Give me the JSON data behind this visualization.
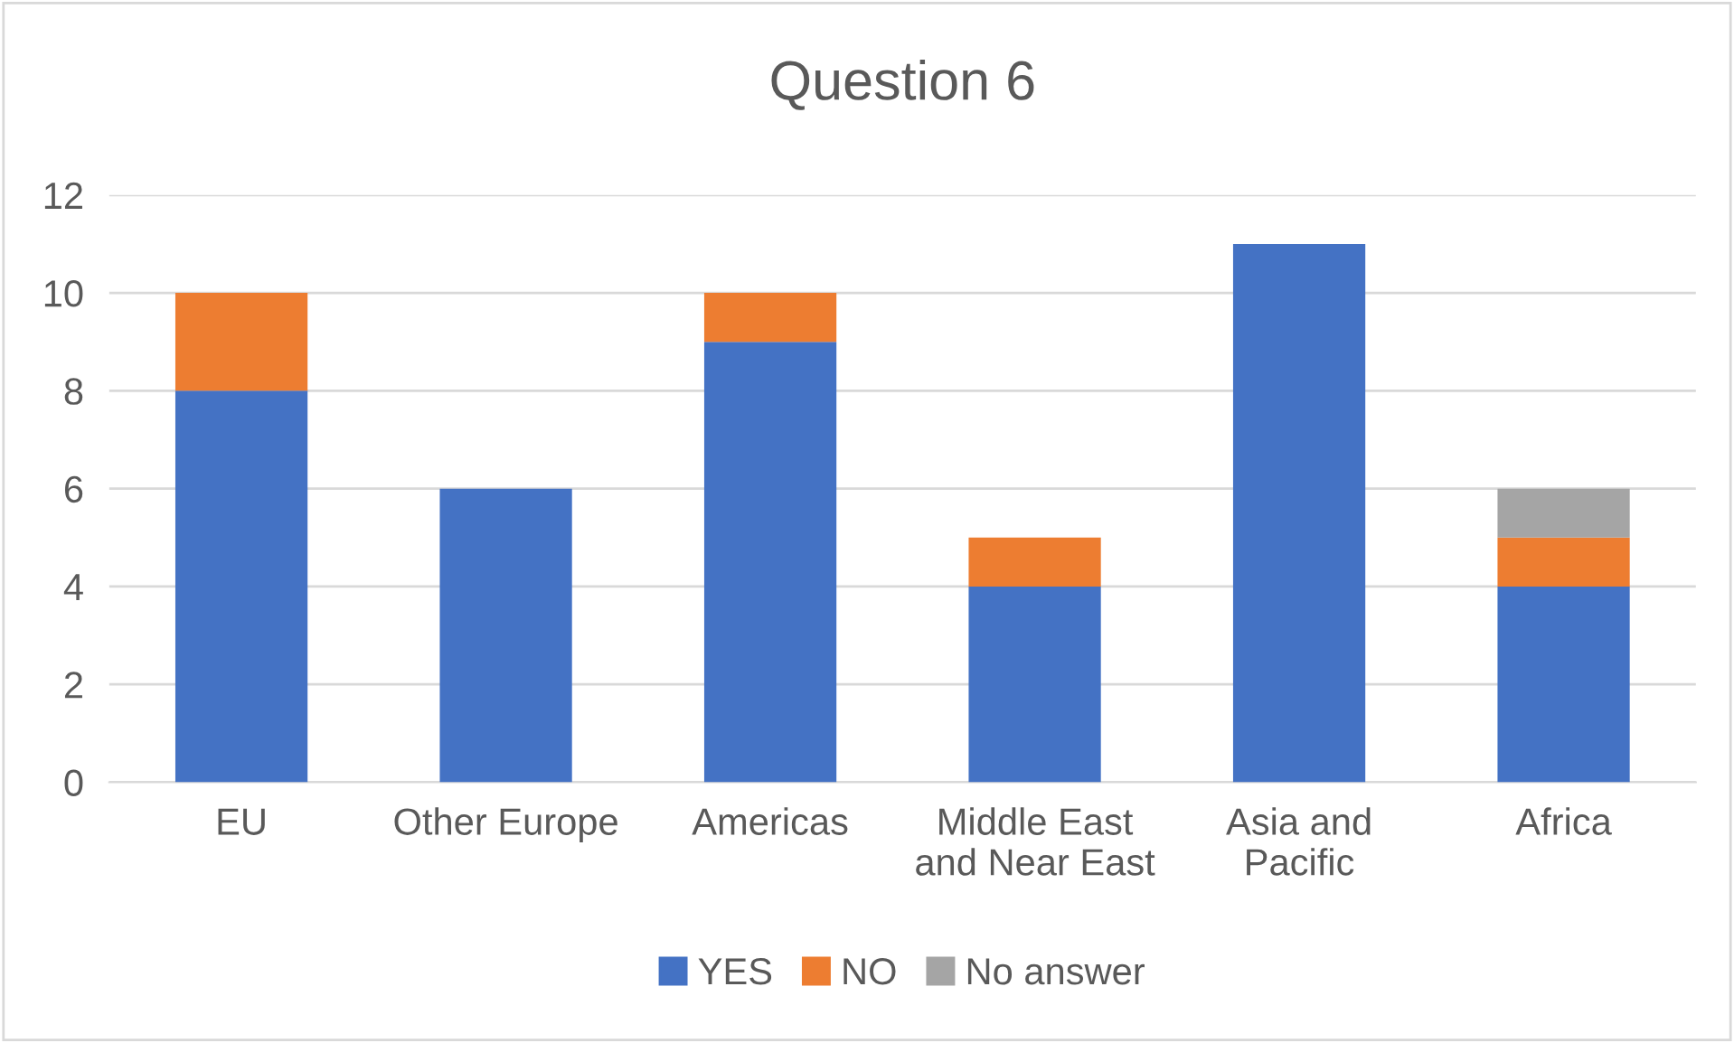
{
  "chart_data": {
    "type": "bar",
    "title": "Question 6",
    "stacked": true,
    "categories": [
      "EU",
      "Other Europe",
      "Americas",
      "Middle East\nand Near East",
      "Asia and\nPacific",
      "Africa"
    ],
    "series": [
      {
        "name": "YES",
        "color": "#4472c4",
        "values": [
          8,
          6,
          9,
          4,
          11,
          4
        ]
      },
      {
        "name": "NO",
        "color": "#ed7d31",
        "values": [
          2,
          0,
          1,
          1,
          0,
          1
        ]
      },
      {
        "name": "No answer",
        "color": "#a5a5a5",
        "values": [
          0,
          0,
          0,
          0,
          0,
          1
        ]
      }
    ],
    "ylim": [
      0,
      12
    ],
    "yticks": [
      0,
      2,
      4,
      6,
      8,
      10,
      12
    ],
    "grid": "y",
    "legend": "bottom"
  }
}
